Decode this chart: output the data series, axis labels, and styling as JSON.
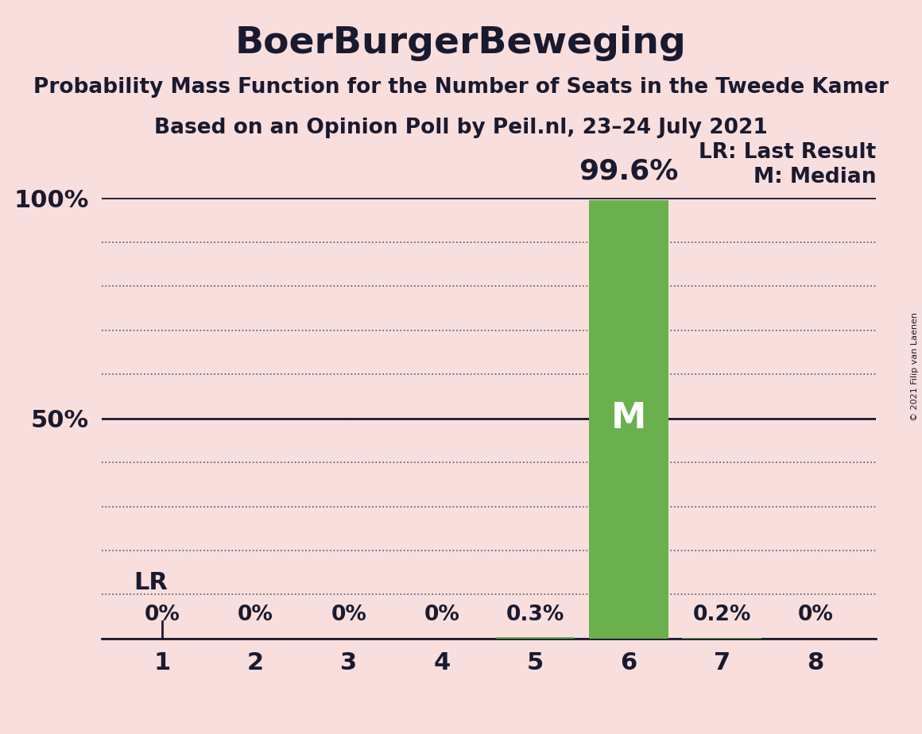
{
  "title": "BoerBurgerBeweging",
  "subtitle1": "Probability Mass Function for the Number of Seats in the Tweede Kamer",
  "subtitle2": "Based on an Opinion Poll by Peil.nl, 23–24 July 2021",
  "copyright": "© 2021 Filip van Laenen",
  "seats": [
    1,
    2,
    3,
    4,
    5,
    6,
    7,
    8
  ],
  "probabilities": [
    0.0,
    0.0,
    0.0,
    0.0,
    0.003,
    0.996,
    0.002,
    0.0
  ],
  "bar_color": "#6ab04c",
  "background_color": "#f9dede",
  "bar_labels": [
    "0%",
    "0%",
    "0%",
    "0%",
    "0.3%",
    "",
    "0.2%",
    "0%"
  ],
  "lr_seat": 1,
  "median_seat": 6,
  "lr_label": "LR",
  "median_label": "M",
  "legend_lr": "LR: Last Result",
  "legend_m": "M: Median",
  "bar_annotation": "99.6%",
  "bar_annotation_seat": 6,
  "ylim": [
    0,
    1.0
  ],
  "yticks": [
    0.5,
    1.0
  ],
  "ytick_labels": [
    "50%",
    "100%"
  ],
  "title_fontsize": 34,
  "subtitle_fontsize": 19,
  "axis_fontsize": 22,
  "bar_label_fontsize": 19,
  "annotation_fontsize": 26,
  "legend_fontsize": 19,
  "text_color": "#1a1a2e",
  "grid_color": "#555555",
  "solid_line_color": "#1a1a2e"
}
